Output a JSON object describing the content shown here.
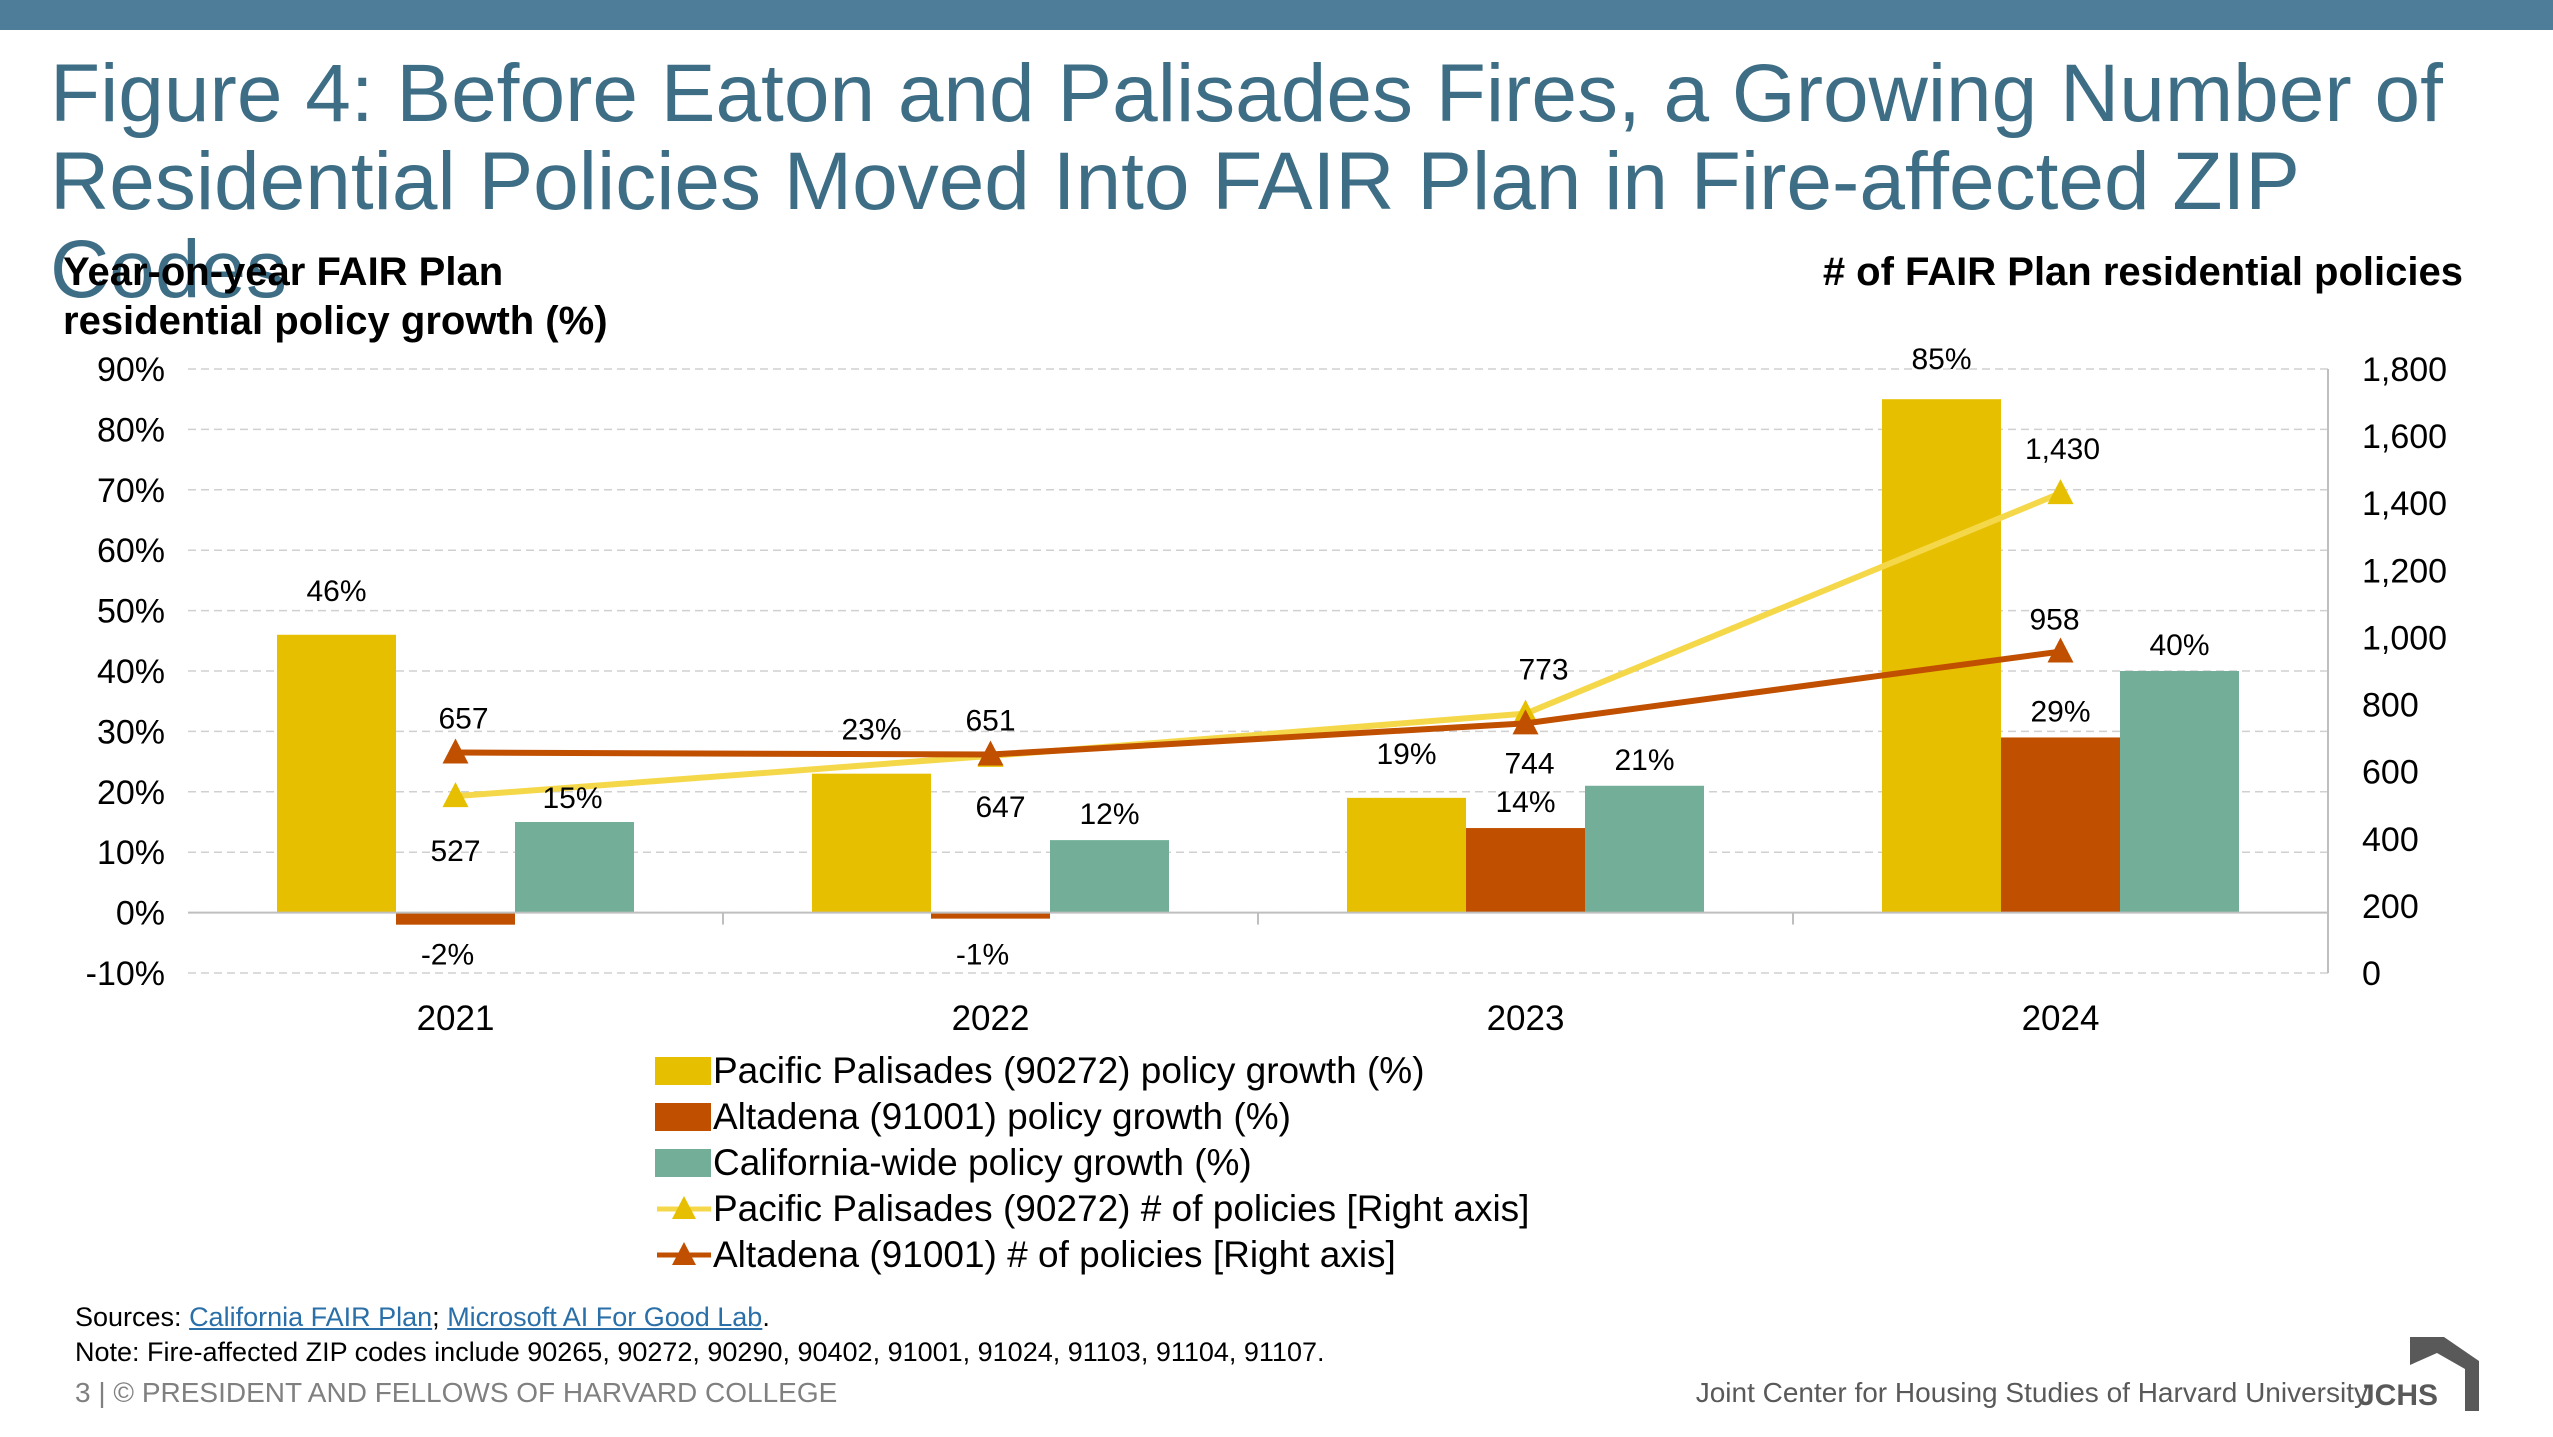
{
  "header": {
    "title": "Figure 4: Before Eaton and Palisades Fires, a Growing Number of Residential Policies Moved Into FAIR Plan in Fire-affected ZIP Codes",
    "bar_color": "#4e7d99",
    "title_color": "#3d6e86"
  },
  "chart_data": {
    "type": "bar",
    "categories": [
      "2021",
      "2022",
      "2023",
      "2024"
    ],
    "left_axis": {
      "title": "Year-on-year FAIR Plan residential policy growth (%)",
      "ylim": [
        -10,
        90
      ],
      "ticks": [
        "90%",
        "80%",
        "70%",
        "60%",
        "50%",
        "40%",
        "30%",
        "20%",
        "10%",
        "0%",
        "-10%"
      ]
    },
    "right_axis": {
      "title": "# of FAIR Plan residential policies",
      "ylim": [
        0,
        1800
      ],
      "ticks": [
        "1,800",
        "1,600",
        "1,400",
        "1,200",
        "1,000",
        "800",
        "600",
        "400",
        "200",
        "0"
      ]
    },
    "grid": "horizontal dashed",
    "legend_position": "bottom",
    "series": [
      {
        "name": "Pacific Palisades (90272) policy growth (%)",
        "kind": "bar",
        "axis": "left",
        "color": "#e6c000",
        "values": [
          46,
          23,
          19,
          85
        ],
        "labels": [
          "46%",
          "23%",
          "19%",
          "85%"
        ]
      },
      {
        "name": "Altadena (91001) policy growth (%)",
        "kind": "bar",
        "axis": "left",
        "color": "#c05000",
        "values": [
          -2,
          -1,
          14,
          29
        ],
        "labels": [
          "-2%",
          "-1%",
          "14%",
          "29%"
        ]
      },
      {
        "name": "California-wide policy growth (%)",
        "kind": "bar",
        "axis": "left",
        "color": "#72ae98",
        "values": [
          15,
          12,
          21,
          40
        ],
        "labels": [
          "15%",
          "12%",
          "21%",
          "40%"
        ]
      },
      {
        "name": "Pacific Palisades (90272) # of policies [Right axis]",
        "kind": "line",
        "axis": "right",
        "color": "#f5d84a",
        "marker_color": "#e6c000",
        "values": [
          527,
          647,
          773,
          1430
        ],
        "labels": [
          "527",
          "647",
          "773",
          "1,430"
        ]
      },
      {
        "name": "Altadena (91001) # of policies [Right axis]",
        "kind": "line",
        "axis": "right",
        "color": "#c05000",
        "marker_color": "#c05000",
        "values": [
          657,
          651,
          744,
          958
        ],
        "labels": [
          "657",
          "651",
          "744",
          "958"
        ]
      }
    ]
  },
  "footer": {
    "sources_prefix": "Sources: ",
    "source_link_1": "California FAIR Plan",
    "sources_sep": "; ",
    "source_link_2": "Microsoft AI For Good Lab",
    "sources_suffix": ".",
    "note": "Note: Fire-affected ZIP codes include 90265, 90272, 90290, 90402, 91001, 91024, 91103, 91104, 91107.",
    "copyright": "3 | © PRESIDENT AND FELLOWS OF HARVARD COLLEGE",
    "organization": "Joint Center for Housing Studies of Harvard University",
    "logo_text": "JCHS"
  }
}
